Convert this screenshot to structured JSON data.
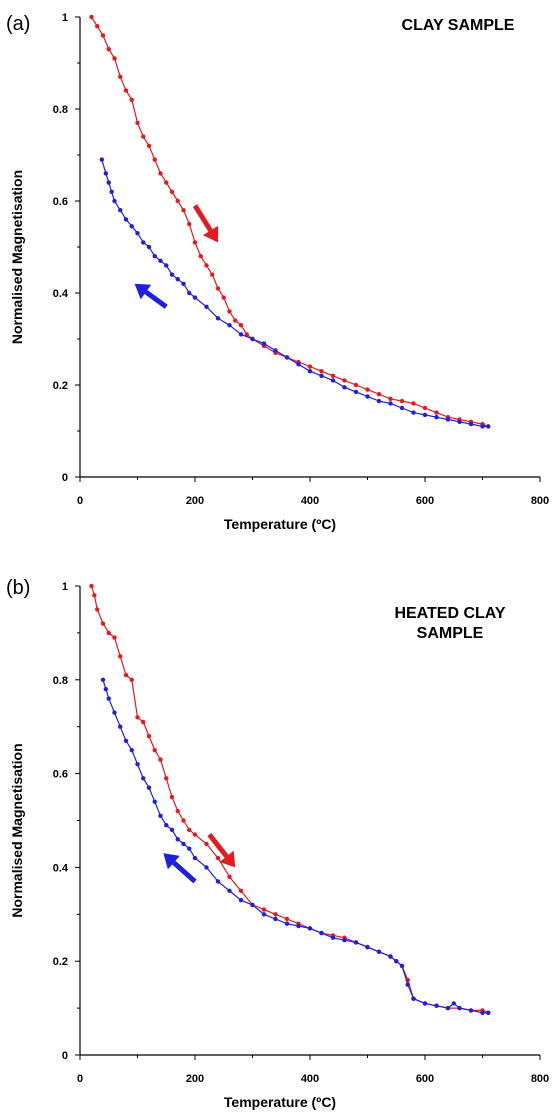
{
  "chart_data": [
    {
      "type": "line",
      "panel_label": "(a)",
      "title_lines": [
        "CLAY SAMPLE"
      ],
      "xlabel": "Temperature (ºC)",
      "ylabel": "Normalised Magnetisation",
      "xlim": [
        0,
        800
      ],
      "ylim": [
        0,
        1
      ],
      "xticks": [
        0,
        200,
        400,
        600,
        800
      ],
      "yticks": [
        0,
        0.2,
        0.4,
        0.6,
        0.8,
        1
      ],
      "ytick_labels": [
        "0",
        "0.2",
        "0.4",
        "0.6",
        "0.8",
        "1"
      ],
      "grid": false,
      "legend": "none",
      "arrows": [
        {
          "color": "#e41a1c",
          "direction": "down-right",
          "from": [
            200,
            0.59
          ],
          "to": [
            240,
            0.51
          ]
        },
        {
          "color": "#1f1fe0",
          "direction": "up-left",
          "from": [
            150,
            0.37
          ],
          "to": [
            95,
            0.42
          ]
        }
      ],
      "series": [
        {
          "color": "#e41a1c",
          "x": [
            20,
            30,
            40,
            50,
            60,
            70,
            80,
            90,
            100,
            110,
            120,
            130,
            140,
            150,
            160,
            170,
            180,
            190,
            200,
            210,
            220,
            230,
            240,
            250,
            260,
            270,
            280,
            290,
            300,
            320,
            340,
            360,
            380,
            400,
            420,
            440,
            460,
            480,
            500,
            520,
            540,
            560,
            580,
            600,
            620,
            640,
            660,
            680,
            700,
            710
          ],
          "y": [
            1.0,
            0.98,
            0.96,
            0.93,
            0.91,
            0.87,
            0.84,
            0.82,
            0.77,
            0.74,
            0.72,
            0.69,
            0.66,
            0.64,
            0.62,
            0.6,
            0.58,
            0.55,
            0.51,
            0.48,
            0.46,
            0.44,
            0.41,
            0.39,
            0.36,
            0.34,
            0.33,
            0.31,
            0.3,
            0.285,
            0.27,
            0.26,
            0.25,
            0.24,
            0.23,
            0.22,
            0.21,
            0.2,
            0.19,
            0.18,
            0.17,
            0.165,
            0.16,
            0.15,
            0.14,
            0.13,
            0.125,
            0.12,
            0.115,
            0.11
          ]
        },
        {
          "color": "#1f1fe0",
          "x": [
            38,
            45,
            50,
            55,
            60,
            70,
            80,
            90,
            100,
            110,
            120,
            130,
            140,
            150,
            160,
            170,
            180,
            190,
            200,
            220,
            240,
            260,
            280,
            300,
            320,
            340,
            360,
            380,
            400,
            420,
            440,
            460,
            480,
            500,
            520,
            540,
            560,
            580,
            600,
            620,
            640,
            660,
            680,
            700,
            710
          ],
          "y": [
            0.69,
            0.66,
            0.64,
            0.62,
            0.6,
            0.58,
            0.56,
            0.545,
            0.53,
            0.51,
            0.5,
            0.48,
            0.47,
            0.46,
            0.44,
            0.43,
            0.42,
            0.4,
            0.39,
            0.37,
            0.345,
            0.33,
            0.31,
            0.3,
            0.29,
            0.275,
            0.26,
            0.245,
            0.23,
            0.22,
            0.21,
            0.195,
            0.185,
            0.175,
            0.165,
            0.16,
            0.15,
            0.14,
            0.135,
            0.13,
            0.125,
            0.12,
            0.115,
            0.11,
            0.11
          ]
        }
      ]
    },
    {
      "type": "line",
      "panel_label": "(b)",
      "title_lines": [
        "HEATED CLAY",
        "SAMPLE"
      ],
      "xlabel": "Temperature (ºC)",
      "ylabel": "Normalised Magnetisation",
      "xlim": [
        0,
        800
      ],
      "ylim": [
        0,
        1
      ],
      "xticks": [
        0,
        200,
        400,
        600,
        800
      ],
      "yticks": [
        0,
        0.2,
        0.4,
        0.6,
        0.8,
        1
      ],
      "ytick_labels": [
        "0",
        "0.2",
        "0.4",
        "0.6",
        "0.8",
        "1"
      ],
      "grid": false,
      "legend": "none",
      "arrows": [
        {
          "color": "#e41a1c",
          "direction": "down-right",
          "from": [
            225,
            0.47
          ],
          "to": [
            270,
            0.4
          ]
        },
        {
          "color": "#1f1fe0",
          "direction": "up-left",
          "from": [
            200,
            0.37
          ],
          "to": [
            145,
            0.43
          ]
        }
      ],
      "series": [
        {
          "color": "#e41a1c",
          "x": [
            20,
            25,
            30,
            40,
            50,
            60,
            70,
            80,
            90,
            100,
            110,
            120,
            130,
            140,
            150,
            160,
            170,
            180,
            190,
            200,
            220,
            240,
            260,
            280,
            300,
            320,
            340,
            360,
            380,
            400,
            420,
            440,
            460,
            480,
            500,
            520,
            540,
            550,
            560,
            570,
            580,
            600,
            620,
            640,
            660,
            680,
            700,
            710
          ],
          "y": [
            1.0,
            0.98,
            0.95,
            0.92,
            0.9,
            0.89,
            0.85,
            0.81,
            0.8,
            0.72,
            0.71,
            0.68,
            0.65,
            0.63,
            0.59,
            0.55,
            0.52,
            0.5,
            0.48,
            0.47,
            0.45,
            0.42,
            0.38,
            0.35,
            0.32,
            0.31,
            0.3,
            0.29,
            0.28,
            0.27,
            0.26,
            0.255,
            0.25,
            0.24,
            0.23,
            0.22,
            0.21,
            0.2,
            0.19,
            0.16,
            0.12,
            0.11,
            0.105,
            0.1,
            0.1,
            0.095,
            0.095,
            0.09
          ]
        },
        {
          "color": "#1f1fe0",
          "x": [
            40,
            45,
            50,
            60,
            70,
            80,
            90,
            100,
            110,
            120,
            130,
            140,
            150,
            160,
            170,
            180,
            190,
            200,
            220,
            240,
            260,
            280,
            300,
            320,
            340,
            360,
            380,
            400,
            420,
            440,
            460,
            480,
            500,
            520,
            540,
            550,
            560,
            570,
            580,
            600,
            620,
            640,
            650,
            660,
            680,
            700,
            710
          ],
          "y": [
            0.8,
            0.78,
            0.76,
            0.73,
            0.7,
            0.67,
            0.65,
            0.62,
            0.59,
            0.57,
            0.54,
            0.51,
            0.49,
            0.48,
            0.46,
            0.45,
            0.44,
            0.42,
            0.4,
            0.37,
            0.35,
            0.33,
            0.32,
            0.3,
            0.29,
            0.28,
            0.275,
            0.27,
            0.26,
            0.25,
            0.245,
            0.24,
            0.23,
            0.22,
            0.21,
            0.2,
            0.19,
            0.15,
            0.12,
            0.11,
            0.105,
            0.1,
            0.11,
            0.1,
            0.095,
            0.09,
            0.09
          ]
        }
      ]
    }
  ]
}
